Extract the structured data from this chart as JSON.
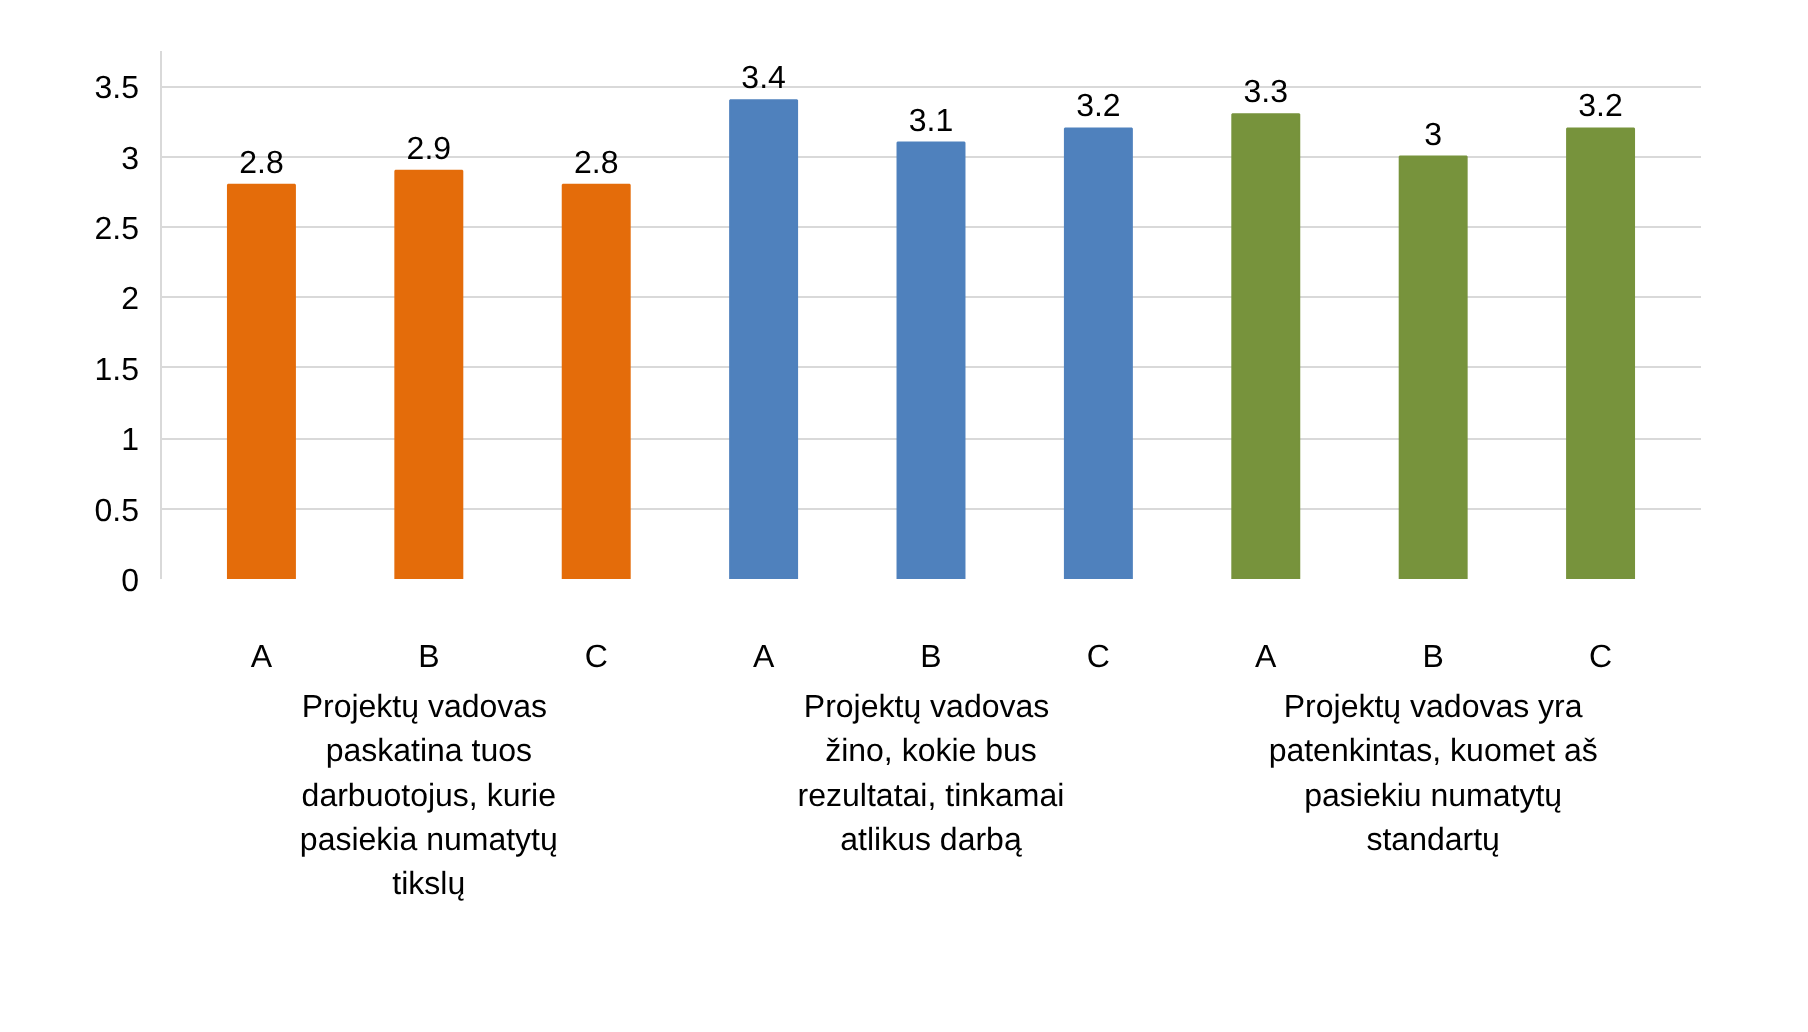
{
  "chart_data": {
    "type": "bar",
    "categories": [
      "A",
      "B",
      "C",
      "A",
      "B",
      "C",
      "A",
      "B",
      "C"
    ],
    "values": [
      2.8,
      2.9,
      2.8,
      3.4,
      3.1,
      3.2,
      3.3,
      3.0,
      3.2
    ],
    "colors": [
      "#e46c0a",
      "#e46c0a",
      "#e46c0a",
      "#4f81bd",
      "#4f81bd",
      "#4f81bd",
      "#77933c",
      "#77933c",
      "#77933c"
    ],
    "value_labels": [
      "2.8",
      "2.9",
      "2.8",
      "3.4",
      "3.1",
      "3.2",
      "3.3",
      "3",
      "3.2"
    ],
    "annotations": [
      "Projektų  vadovas paskatina tuos darbuotojus, kurie pasiekia numatytų tikslų",
      "Projektų  vadovas žino, kokie bus rezultatai, tinkamai atlikus darbą",
      "Projektų vadovas yra patenkintas, kuomet aš pasiekiu numatytų standartų"
    ],
    "ylim": [
      0,
      3.75
    ],
    "yticks": [
      0,
      0.5,
      1,
      1.5,
      2,
      2.5,
      3,
      {
        "value": 3.5,
        "label": "3.5"
      }
    ],
    "grid": "y"
  }
}
